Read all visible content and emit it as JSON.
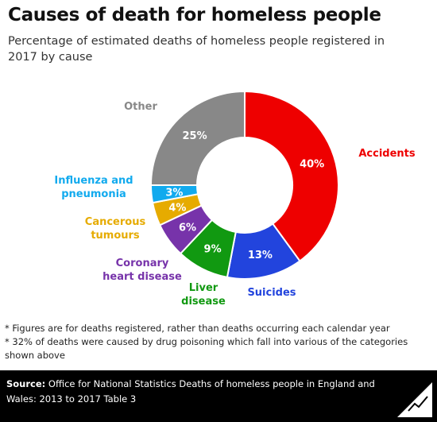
{
  "header": {
    "title": "Causes of death for homeless people",
    "subtitle": "Percentage of estimated deaths of homeless people registered in 2017 by cause"
  },
  "chart_data": {
    "type": "pie",
    "donut": true,
    "categories": [
      "Accidents",
      "Suicides",
      "Liver disease",
      "Coronary heart disease",
      "Cancerous tumours",
      "Influenza and pneumonia",
      "Other"
    ],
    "label_lines": [
      [
        "Accidents"
      ],
      [
        "Suicides"
      ],
      [
        "Liver",
        "disease"
      ],
      [
        "Coronary",
        "heart disease"
      ],
      [
        "Cancerous",
        "tumours"
      ],
      [
        "Influenza and",
        "pneumonia"
      ],
      [
        "Other"
      ]
    ],
    "values": [
      40,
      13,
      9,
      6,
      4,
      3,
      25
    ],
    "value_labels": [
      "40%",
      "13%",
      "9%",
      "6%",
      "4%",
      "3%",
      "25%"
    ],
    "colors": [
      "#ee0000",
      "#2244dd",
      "#119911",
      "#7733aa",
      "#e6ab00",
      "#11aaee",
      "#888888"
    ],
    "legend": "labels-around"
  },
  "notes": [
    "* Figures are for deaths registered, rather than deaths occurring each calendar year",
    "* 32% of deaths were caused by drug poisoning which fall into various of the categories shown above"
  ],
  "footer": {
    "source_label": "Source:",
    "source_text": " Office for National Statistics Deaths of homeless people in England and Wales: 2013 to 2017 Table 3",
    "logo_text": "Full Fact"
  }
}
